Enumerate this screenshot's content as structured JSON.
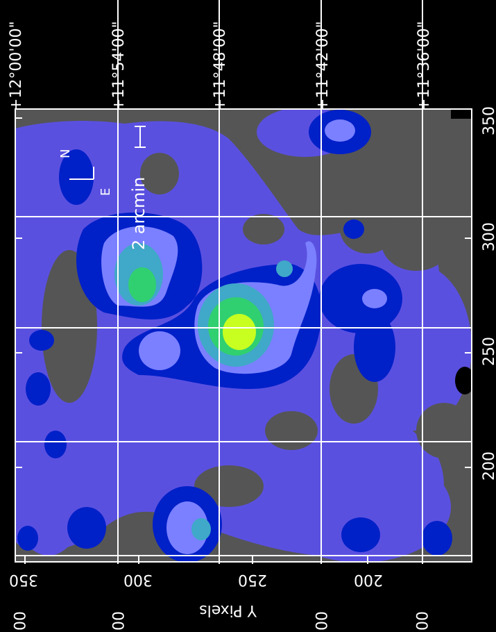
{
  "figure": {
    "top_dec_labels": [
      "+12°00'00\"",
      "+11°54'00\"",
      "+11°48'00\"",
      "+11°42'00\"",
      "+11°36'00\""
    ],
    "top_pixel_ticks": [
      "350",
      "300",
      "250",
      "200"
    ],
    "bottom_pixel_ticks": [
      "350",
      "300",
      "250",
      "200"
    ],
    "bottom_dec_labels": [
      "00\"",
      "00\"",
      "00\"",
      "00\""
    ],
    "y_axis_label": "Y Pixels",
    "compass": {
      "north": "N",
      "east": "E"
    },
    "scale_bar_label": "2 arcmin",
    "colors": {
      "background": "#000000",
      "field": "#555555",
      "level1": "#5a50e0",
      "level2": "#0020c8",
      "level3": "#7a80ff",
      "level4": "#40a8c8",
      "level5": "#30d070",
      "level6": "#c8ff20",
      "grid": "#ffffff"
    }
  }
}
